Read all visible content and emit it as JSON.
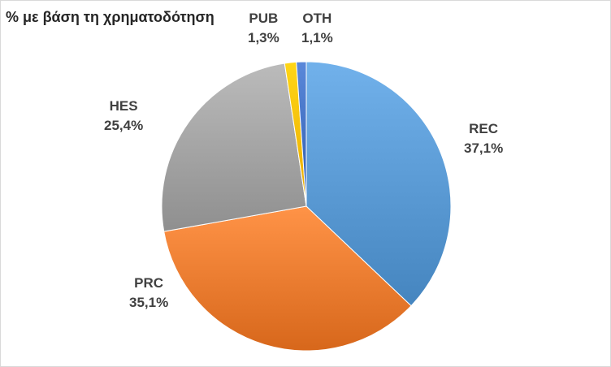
{
  "chart_data": {
    "type": "pie",
    "title": "% με βάση τη χρηματοδότηση",
    "categories": [
      "REC",
      "PRC",
      "HES",
      "PUB",
      "OTH"
    ],
    "values": [
      37.1,
      35.1,
      25.4,
      1.3,
      1.1
    ],
    "value_labels": [
      "37,1%",
      "35,1%",
      "25,4%",
      "1,3%",
      "1,1%"
    ],
    "colors": [
      "#5b9bd5",
      "#ed7d31",
      "#a5a5a5",
      "#ffc000",
      "#4472c4"
    ],
    "start_angle_deg": 0,
    "direction": "clockwise",
    "legend": "none",
    "grid": false
  }
}
